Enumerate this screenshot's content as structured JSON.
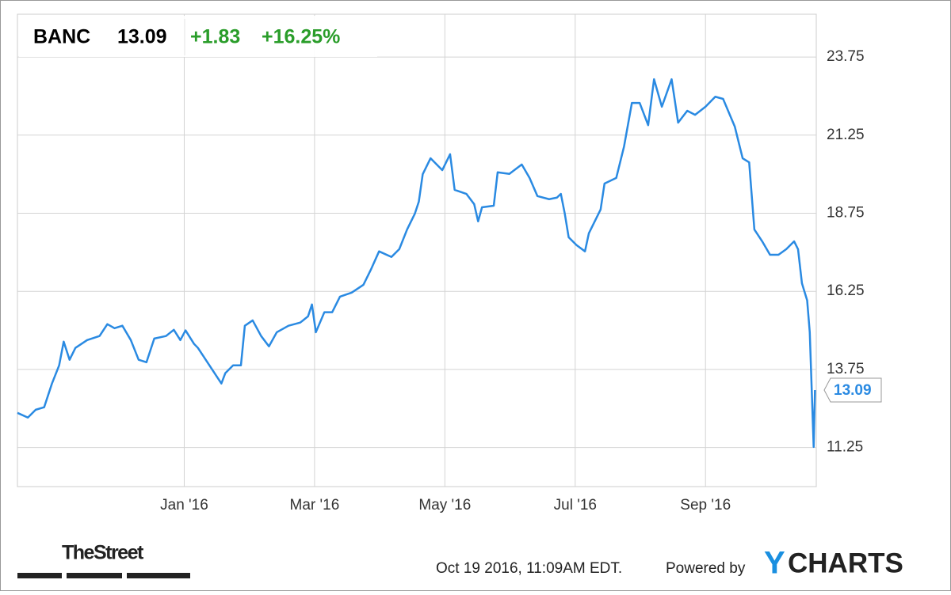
{
  "chart_data": {
    "type": "line",
    "header": {
      "ticker": "BANC",
      "price": "13.09",
      "change": "+1.83",
      "change_percent": "+16.25%"
    },
    "series": [
      {
        "name": "BANC",
        "color": "#2a8ae2",
        "x": [
          -2.56,
          -2.4,
          -2.28,
          -2.15,
          -2.03,
          -1.92,
          -1.85,
          -1.76,
          -1.67,
          -1.49,
          -1.3,
          -1.18,
          -1.07,
          -0.95,
          -0.82,
          -0.7,
          -0.58,
          -0.46,
          -0.28,
          -0.16,
          -0.06,
          0.02,
          0.15,
          0.21,
          0.33,
          0.45,
          0.57,
          0.63,
          0.75,
          0.87,
          0.93,
          1.05,
          1.18,
          1.3,
          1.42,
          1.6,
          1.78,
          1.9,
          1.96,
          2.02,
          2.15,
          2.27,
          2.39,
          2.57,
          2.75,
          2.87,
          2.99,
          3.18,
          3.3,
          3.42,
          3.54,
          3.6,
          3.66,
          3.78,
          3.96,
          4.08,
          4.15,
          4.33,
          4.45,
          4.51,
          4.57,
          4.75,
          4.81,
          4.99,
          5.18,
          5.3,
          5.42,
          5.6,
          5.72,
          5.78,
          5.84,
          5.9,
          6.02,
          6.15,
          6.21,
          6.39,
          6.45,
          6.63,
          6.75,
          6.87,
          6.99,
          7.12,
          7.21,
          7.33,
          7.48,
          7.58,
          7.72,
          7.84,
          8.0,
          8.15,
          8.27,
          8.45,
          8.57,
          8.67,
          8.75,
          8.87,
          8.99,
          9.12,
          9.24,
          9.36,
          9.42,
          9.48,
          9.56,
          9.6,
          9.66,
          9.68
        ],
        "values": [
          12.36,
          12.21,
          12.46,
          12.54,
          13.3,
          13.88,
          14.64,
          14.06,
          14.44,
          14.69,
          14.82,
          15.2,
          15.07,
          15.15,
          14.69,
          14.06,
          13.98,
          14.74,
          14.82,
          15.02,
          14.69,
          15.0,
          14.57,
          14.44,
          14.06,
          13.68,
          13.3,
          13.63,
          13.88,
          13.88,
          15.15,
          15.32,
          14.82,
          14.49,
          14.94,
          15.15,
          15.25,
          15.45,
          15.83,
          14.94,
          15.58,
          15.58,
          16.08,
          16.21,
          16.46,
          16.97,
          17.53,
          17.35,
          17.6,
          18.23,
          18.74,
          19.12,
          20.0,
          20.51,
          20.13,
          20.64,
          19.5,
          19.37,
          19.04,
          18.49,
          18.94,
          18.99,
          20.06,
          20.01,
          20.31,
          19.88,
          19.3,
          19.2,
          19.25,
          19.37,
          18.74,
          17.98,
          17.73,
          17.53,
          18.11,
          18.87,
          19.7,
          19.88,
          20.89,
          22.28,
          22.28,
          21.57,
          23.04,
          22.16,
          23.04,
          21.65,
          22.03,
          21.9,
          22.16,
          22.48,
          22.41,
          21.52,
          20.51,
          20.38,
          18.23,
          17.85,
          17.42,
          17.42,
          17.6,
          17.85,
          17.6,
          16.51,
          15.96,
          14.94,
          11.27,
          13.09
        ]
      }
    ],
    "xlim": [
      -2.56,
      9.7
    ],
    "xticks": [
      {
        "value": 0,
        "label": "Jan '16"
      },
      {
        "value": 2,
        "label": "Mar '16"
      },
      {
        "value": 4,
        "label": "May '16"
      },
      {
        "value": 6,
        "label": "Jul '16"
      },
      {
        "value": 8,
        "label": "Sep '16"
      }
    ],
    "ylim": [
      10.0,
      25.12
    ],
    "yticks": [
      11.25,
      13.75,
      16.25,
      18.75,
      21.25,
      23.75
    ],
    "grid": true,
    "footer": {
      "source_logo": "TheStreet",
      "timestamp": "Oct 19 2016, 11:09AM EDT.",
      "powered_by": "Powered by",
      "brand_y": "Y",
      "brand_rest": "CHARTS"
    }
  }
}
